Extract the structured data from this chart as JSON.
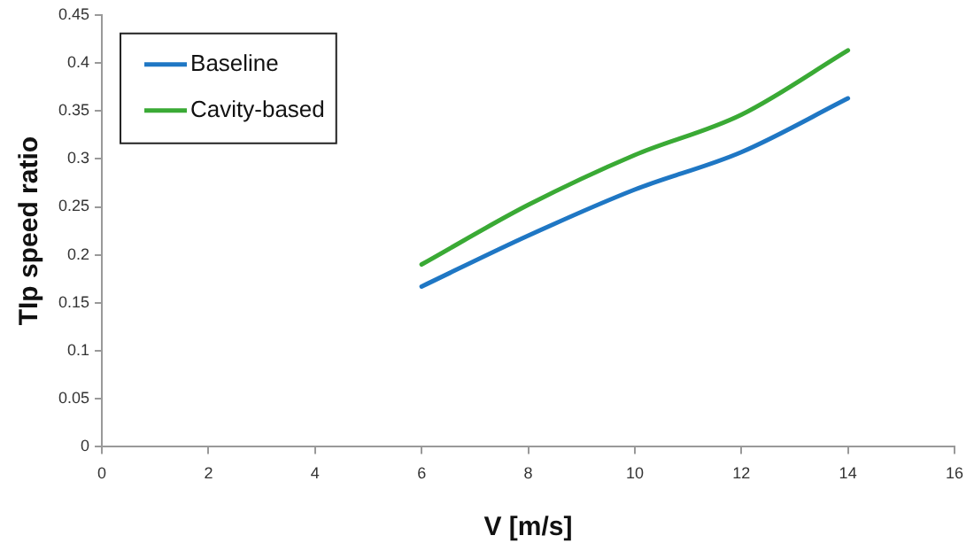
{
  "chart_data": {
    "type": "line",
    "xlabel": "V [m/s]",
    "ylabel": "TIp speed ratio",
    "x": [
      6,
      8,
      10,
      12,
      14
    ],
    "series": [
      {
        "name": "Baseline",
        "color": "#1f77c4",
        "values": [
          0.167,
          0.22,
          0.268,
          0.307,
          0.363
        ]
      },
      {
        "name": "Cavity-based",
        "color": "#3aaa35",
        "values": [
          0.19,
          0.252,
          0.304,
          0.346,
          0.413
        ]
      }
    ],
    "xlim": [
      0,
      16
    ],
    "xticks": [
      0,
      2,
      4,
      6,
      8,
      10,
      12,
      14,
      16
    ],
    "ylim": [
      0,
      0.45
    ],
    "yticks": [
      0,
      0.05,
      0.1,
      0.15,
      0.2,
      0.25,
      0.3,
      0.35,
      0.4,
      0.45
    ],
    "grid": false,
    "legend": "top left",
    "marker": "none",
    "line_style": "solid"
  }
}
